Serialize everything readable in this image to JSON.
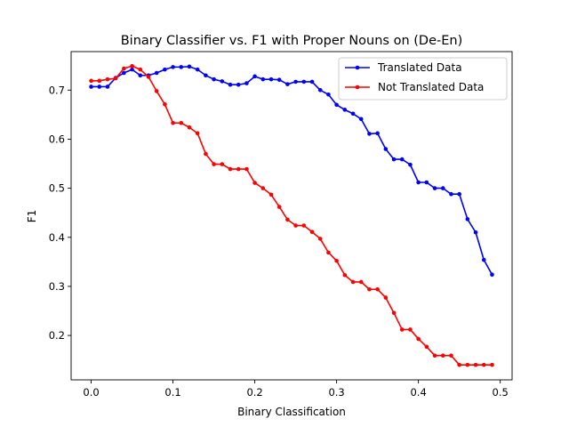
{
  "chart_data": {
    "type": "line",
    "title": "Binary Classifier vs. F1 with Proper Nouns on (De-En)",
    "xlabel": "Binary Classification",
    "ylabel": "F1",
    "xlim": [
      -0.0245,
      0.5145
    ],
    "ylim": [
      0.1095,
      0.7785
    ],
    "xticks": [
      0.0,
      0.1,
      0.2,
      0.3,
      0.4,
      0.5
    ],
    "xtick_labels": [
      "0.0",
      "0.1",
      "0.2",
      "0.3",
      "0.4",
      "0.5"
    ],
    "yticks": [
      0.2,
      0.3,
      0.4,
      0.5,
      0.6,
      0.7
    ],
    "ytick_labels": [
      "0.2",
      "0.3",
      "0.4",
      "0.5",
      "0.6",
      "0.7"
    ],
    "grid": false,
    "legend_position": "top-right",
    "x": [
      0.0,
      0.01,
      0.02,
      0.03,
      0.04,
      0.05,
      0.06,
      0.07,
      0.08,
      0.09,
      0.1,
      0.11,
      0.12,
      0.13,
      0.14,
      0.15,
      0.16,
      0.17,
      0.18,
      0.19,
      0.2,
      0.21,
      0.22,
      0.23,
      0.24,
      0.25,
      0.26,
      0.27,
      0.28,
      0.29,
      0.3,
      0.31,
      0.32,
      0.33,
      0.34,
      0.35,
      0.36,
      0.37,
      0.38,
      0.39,
      0.4,
      0.41,
      0.42,
      0.43,
      0.44,
      0.45,
      0.46,
      0.47,
      0.48,
      0.49
    ],
    "series": [
      {
        "name": "Translated Data",
        "color": "#0000ff",
        "values": [
          0.707,
          0.707,
          0.707,
          0.725,
          0.735,
          0.742,
          0.73,
          0.73,
          0.735,
          0.742,
          0.747,
          0.747,
          0.748,
          0.742,
          0.73,
          0.722,
          0.718,
          0.711,
          0.711,
          0.714,
          0.728,
          0.722,
          0.722,
          0.721,
          0.712,
          0.717,
          0.717,
          0.717,
          0.7,
          0.691,
          0.67,
          0.66,
          0.652,
          0.641,
          0.611,
          0.612,
          0.58,
          0.559,
          0.559,
          0.548,
          0.512,
          0.512,
          0.5,
          0.5,
          0.488,
          0.488,
          0.437,
          0.41,
          0.354,
          0.324
        ]
      },
      {
        "name": "Not Translated Data",
        "color": "#ff0000",
        "values": [
          0.719,
          0.719,
          0.722,
          0.724,
          0.744,
          0.749,
          0.742,
          0.727,
          0.698,
          0.671,
          0.633,
          0.633,
          0.624,
          0.612,
          0.57,
          0.549,
          0.549,
          0.539,
          0.539,
          0.539,
          0.511,
          0.5,
          0.487,
          0.462,
          0.436,
          0.424,
          0.424,
          0.411,
          0.397,
          0.369,
          0.352,
          0.323,
          0.309,
          0.309,
          0.294,
          0.294,
          0.277,
          0.246,
          0.212,
          0.212,
          0.193,
          0.177,
          0.159,
          0.159,
          0.159,
          0.14,
          0.14,
          0.14,
          0.14,
          0.14
        ]
      }
    ]
  }
}
